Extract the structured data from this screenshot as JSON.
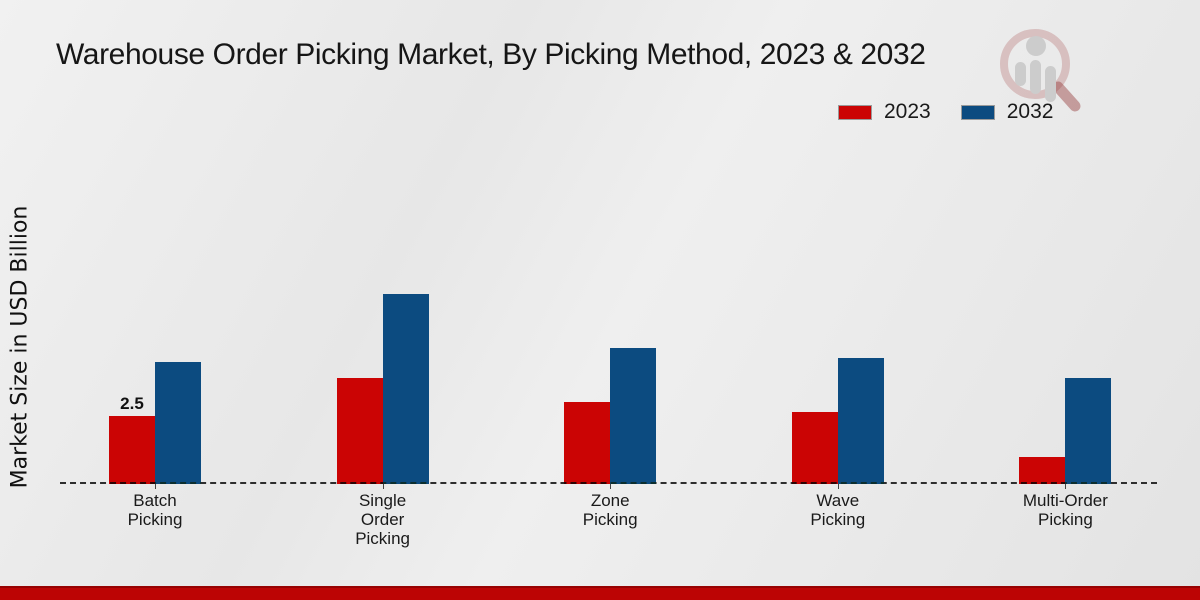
{
  "title": "Warehouse Order Picking Market, By Picking Method, 2023 & 2032",
  "y_axis_label": "Market Size in USD Billion",
  "legend": {
    "position": "top-right",
    "items": [
      {
        "label": "2023",
        "color": "#cb0404"
      },
      {
        "label": "2032",
        "color": "#0c4b80"
      }
    ]
  },
  "watermark_icon": "magnifier-bar-chart-logo",
  "footer_bar_color": "#bc0404",
  "chart_data": {
    "type": "bar",
    "title": "Warehouse Order Picking Market, By Picking Method, 2023 & 2032",
    "xlabel": "",
    "ylabel": "Market Size in USD Billion",
    "categories": [
      "Batch Picking",
      "Single Order Picking",
      "Zone Picking",
      "Wave Picking",
      "Multi-Order Picking"
    ],
    "category_label_lines": [
      "Batch\nPicking",
      "Single\nOrder\nPicking",
      "Zone\nPicking",
      "Wave\nPicking",
      "Multi-Order\nPicking"
    ],
    "series": [
      {
        "name": "2023",
        "color": "#cb0404",
        "values": [
          2.5,
          3.9,
          3.0,
          2.65,
          1.0
        ]
      },
      {
        "name": "2032",
        "color": "#0c4b80",
        "values": [
          4.5,
          7.0,
          5.0,
          4.65,
          3.9
        ]
      }
    ],
    "annotations": [
      {
        "series_index": 0,
        "category_index": 0,
        "text": "2.5"
      }
    ],
    "ylim": [
      0,
      8
    ],
    "grid": false,
    "legend_position": "top-right",
    "baseline_style": "dashed",
    "y_axis_ticks_visible": false
  }
}
